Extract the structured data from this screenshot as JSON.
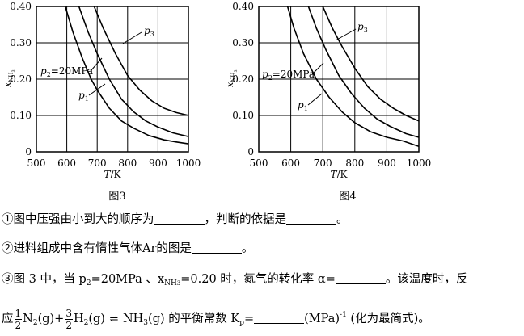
{
  "figures": [
    {
      "caption": "图3",
      "chart_data": {
        "type": "line",
        "xlabel": "T/K",
        "ylabel": "x_{NH3}",
        "xlim": [
          500,
          1000
        ],
        "ylim": [
          0,
          0.4
        ],
        "xticks": [
          "500",
          "600",
          "700",
          "800",
          "900",
          "1000"
        ],
        "yticks": [
          "0",
          "0.10",
          "0.20",
          "0.30",
          "0.40"
        ],
        "grid": true,
        "series": [
          {
            "name": "p1",
            "x": [
              595,
              620,
              650,
              680,
              700,
              740,
              780,
              820,
              870,
              920,
              960,
              1000
            ],
            "y": [
              0.4,
              0.33,
              0.26,
              0.2,
              0.17,
              0.12,
              0.085,
              0.065,
              0.045,
              0.033,
              0.027,
              0.022
            ]
          },
          {
            "name": "p2=20MPa",
            "x": [
              640,
              670,
              700,
              740,
              780,
              820,
              860,
              900,
              950,
              1000
            ],
            "y": [
              0.4,
              0.33,
              0.27,
              0.2,
              0.145,
              0.11,
              0.085,
              0.068,
              0.052,
              0.042
            ]
          },
          {
            "name": "p3",
            "x": [
              690,
              720,
              760,
              800,
              840,
              880,
              920,
              960,
              1000
            ],
            "y": [
              0.4,
              0.34,
              0.27,
              0.21,
              0.17,
              0.14,
              0.12,
              0.108,
              0.1
            ]
          }
        ]
      },
      "labels": {
        "p3": "p",
        "p3_sub": "3",
        "p2": "p",
        "p2_sub": "2",
        "p2_rest": "=20MPa",
        "p1": "p",
        "p1_sub": "1"
      }
    },
    {
      "caption": "图4",
      "chart_data": {
        "type": "line",
        "xlabel": "T/K",
        "ylabel": "x_{NH3}",
        "xlim": [
          500,
          1000
        ],
        "ylim": [
          0,
          0.4
        ],
        "xticks": [
          "500",
          "600",
          "700",
          "800",
          "900",
          "1000"
        ],
        "yticks": [
          "0",
          "0.10",
          "0.20",
          "0.30",
          "0.40"
        ],
        "grid": true,
        "series": [
          {
            "name": "p1",
            "x": [
              590,
              610,
              640,
              680,
              720,
              760,
              800,
              850,
              900,
              950,
              1000
            ],
            "y": [
              0.4,
              0.34,
              0.27,
              0.2,
              0.15,
              0.11,
              0.08,
              0.055,
              0.04,
              0.03,
              0.015
            ]
          },
          {
            "name": "p2=20MPa",
            "x": [
              655,
              680,
              710,
              750,
              790,
              830,
              870,
              910,
              960,
              1000
            ],
            "y": [
              0.4,
              0.34,
              0.28,
              0.21,
              0.16,
              0.12,
              0.09,
              0.07,
              0.05,
              0.04
            ]
          },
          {
            "name": "p3",
            "x": [
              700,
              730,
              760,
              800,
              840,
              880,
              920,
              960,
              1000
            ],
            "y": [
              0.4,
              0.34,
              0.29,
              0.23,
              0.18,
              0.145,
              0.12,
              0.1,
              0.085
            ]
          }
        ]
      },
      "labels": {
        "p3": "p",
        "p3_sub": "3",
        "p2": "p",
        "p2_sub": "2",
        "p2_rest": "=20MPa",
        "p1": "p",
        "p1_sub": "1"
      }
    }
  ],
  "axis_y_main": "x",
  "axis_y_sub": "NH",
  "axis_y_subsub": "3",
  "axis_x_label": "T/K",
  "q1": "①图中压强由小到大的顺序为",
  "q1b": "，判断的依据是",
  "q1c": "。",
  "q2": "②进料组成中含有惰性气体Ar的图是",
  "q2b": "。",
  "q3a": "③图 3 中，当 p",
  "q3a_sub": "2",
  "q3b": "=20MPa 、x",
  "q3b_sub": "NH",
  "q3b_subsub": "3",
  "q3c": "=0.20 时，氮气的转化率 α=",
  "q3d": "。该温度时，反",
  "q4a": "应",
  "frac1_num": "1",
  "frac1_den": "2",
  "n2": "N",
  "n2_sub": "2",
  "n2_tail": "(g)+",
  "frac2_num": "3",
  "frac2_den": "2",
  "h2": "H",
  "h2_sub": "2",
  "h2_tail": "(g)",
  "arrow": "⇌",
  "nh3": "NH",
  "nh3_sub": "3",
  "nh3_tail": "(g) 的平衡常数 K",
  "kp_sub": "p",
  "kp_eq": "=",
  "unit": "(MPa)",
  "unit_sup": "-1",
  "tail": " (化为最简式)。"
}
